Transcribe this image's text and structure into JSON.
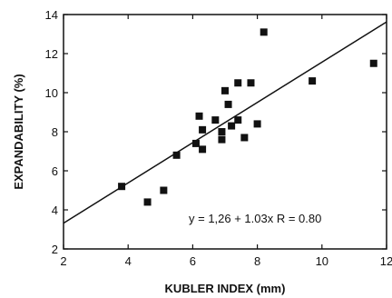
{
  "chart_data": {
    "type": "scatter",
    "xlabel": "KUBLER INDEX (mm)",
    "ylabel": "EXPANDABILITY (%)",
    "xlim": [
      2,
      12
    ],
    "ylim": [
      2,
      14
    ],
    "xticks": [
      2,
      4,
      6,
      8,
      10,
      12
    ],
    "yticks": [
      2,
      4,
      6,
      8,
      10,
      12,
      14
    ],
    "grid": false,
    "series": [
      {
        "marker": "square",
        "color": "#111111",
        "points": [
          {
            "x": 3.8,
            "y": 5.2
          },
          {
            "x": 4.6,
            "y": 4.4
          },
          {
            "x": 5.1,
            "y": 5.0
          },
          {
            "x": 5.5,
            "y": 6.8
          },
          {
            "x": 6.1,
            "y": 7.4
          },
          {
            "x": 6.2,
            "y": 8.8
          },
          {
            "x": 6.3,
            "y": 7.1
          },
          {
            "x": 6.3,
            "y": 8.1
          },
          {
            "x": 6.7,
            "y": 8.6
          },
          {
            "x": 6.9,
            "y": 7.6
          },
          {
            "x": 6.9,
            "y": 8.0
          },
          {
            "x": 7.0,
            "y": 10.1
          },
          {
            "x": 7.1,
            "y": 9.4
          },
          {
            "x": 7.2,
            "y": 8.3
          },
          {
            "x": 7.4,
            "y": 8.6
          },
          {
            "x": 7.4,
            "y": 10.5
          },
          {
            "x": 7.6,
            "y": 7.7
          },
          {
            "x": 7.8,
            "y": 10.5
          },
          {
            "x": 8.0,
            "y": 8.4
          },
          {
            "x": 8.2,
            "y": 13.1
          },
          {
            "x": 9.7,
            "y": 10.6
          },
          {
            "x": 11.6,
            "y": 11.5
          }
        ]
      }
    ],
    "fit_line": {
      "intercept": 1.26,
      "slope": 1.03
    },
    "annotation": "y = 1,26 + 1.03x   R = 0.80"
  }
}
